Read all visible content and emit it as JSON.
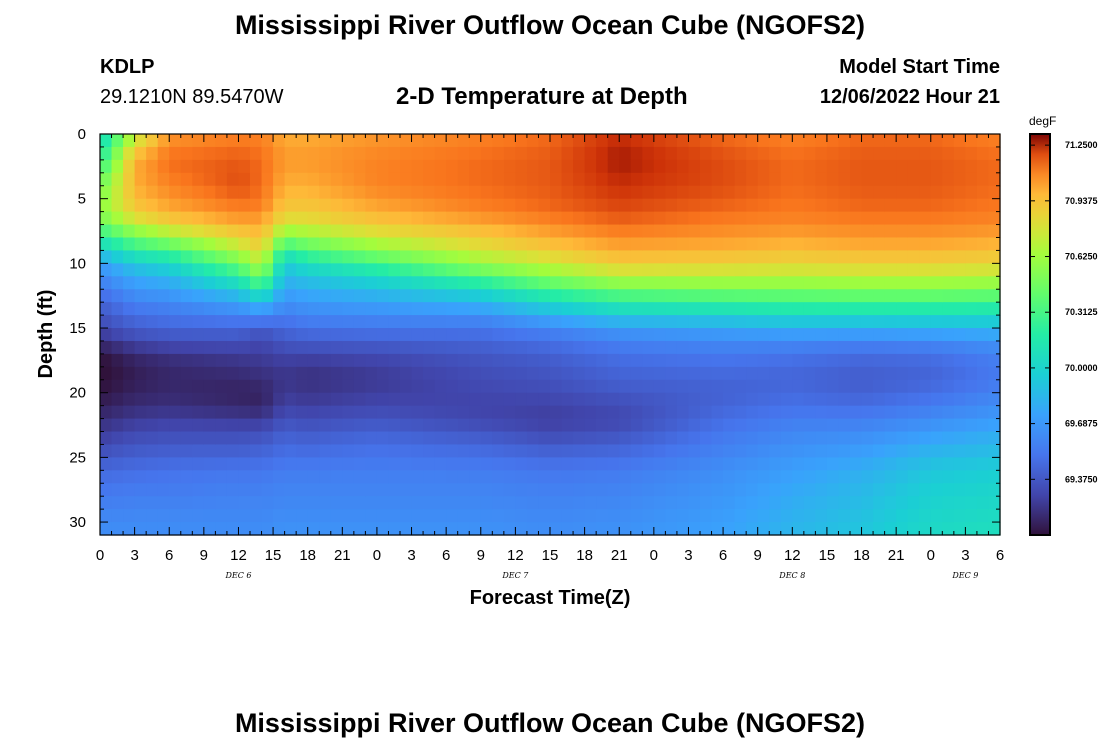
{
  "header": {
    "title": "Mississippi River Outflow Ocean Cube (NGOFS2)",
    "station_id": "KDLP",
    "station_coords": "29.1210N  89.5470W",
    "subtitle": "2-D Temperature at Depth",
    "model_start_label": "Model Start Time",
    "model_start_value": "12/06/2022 Hour 21"
  },
  "footer": {
    "title": "Mississippi River Outflow Ocean Cube (NGOFS2)"
  },
  "chart_data": {
    "type": "heatmap",
    "variable": "Temperature",
    "units": "degF",
    "xlabel": "Forecast Time(Z)",
    "ylabel": "Depth (ft)",
    "x_start": "DEC 6 00Z",
    "x_range_hours": [
      0,
      78
    ],
    "ylim": [
      0,
      31
    ],
    "y_inverted": true,
    "yticks": [
      0,
      5,
      10,
      15,
      20,
      25,
      30
    ],
    "xtick_labels": [
      "0",
      "3",
      "6",
      "9",
      "12",
      "15",
      "18",
      "21",
      "0",
      "3",
      "6",
      "9",
      "12",
      "15",
      "18",
      "21",
      "0",
      "3",
      "6",
      "9",
      "12",
      "15",
      "18",
      "21",
      "0",
      "3",
      "6"
    ],
    "day_labels": [
      {
        "label": "DEC 6",
        "hour": 12
      },
      {
        "label": "DEC 7",
        "hour": 36
      },
      {
        "label": "DEC 8",
        "hour": 60
      },
      {
        "label": "DEC 9",
        "hour": 75
      }
    ],
    "colorbar": {
      "min": 69.0625,
      "max": 71.3125,
      "tick_values": [
        71.25,
        70.9375,
        70.625,
        70.3125,
        70.0,
        69.6875,
        69.375
      ],
      "tick_labels": [
        "71.2500",
        "70.9375",
        "70.6250",
        "70.3125",
        "70.0000",
        "69.6875",
        "69.3750"
      ]
    },
    "temperature_profiles": {
      "depths_ft": [
        0,
        2,
        4,
        6,
        7,
        8,
        9,
        10,
        11,
        12,
        13,
        14,
        15,
        16,
        17,
        18,
        19,
        20,
        21,
        22,
        23,
        24,
        25,
        26,
        28,
        30,
        31
      ],
      "times_hours": [
        0,
        3,
        6,
        12,
        14,
        16,
        18,
        24,
        33,
        39,
        45,
        54,
        60,
        66,
        72,
        78
      ],
      "values_degF": [
        [
          70.0,
          70.2,
          70.48,
          70.58,
          70.4,
          70.2,
          69.95,
          69.72,
          69.62,
          69.52,
          69.44,
          69.36,
          69.3,
          69.2,
          69.08,
          69.04,
          69.05,
          69.08,
          69.12,
          69.18,
          69.24,
          69.3,
          69.38,
          69.46,
          69.54,
          69.62,
          69.64
        ],
        [
          70.7,
          71.0,
          71.0,
          70.9,
          70.7,
          70.45,
          70.2,
          69.95,
          69.78,
          69.68,
          69.58,
          69.48,
          69.4,
          69.3,
          69.18,
          69.12,
          69.12,
          69.14,
          69.18,
          69.24,
          69.3,
          69.36,
          69.42,
          69.48,
          69.56,
          69.62,
          69.64
        ],
        [
          71.05,
          71.15,
          71.1,
          71.0,
          70.85,
          70.6,
          70.3,
          70.05,
          69.85,
          69.72,
          69.62,
          69.52,
          69.44,
          69.34,
          69.22,
          69.16,
          69.16,
          69.16,
          69.2,
          69.26,
          69.32,
          69.38,
          69.44,
          69.5,
          69.56,
          69.62,
          69.64
        ],
        [
          71.1,
          71.18,
          71.2,
          71.1,
          71.0,
          70.85,
          70.68,
          70.45,
          70.2,
          69.95,
          69.75,
          69.58,
          69.45,
          69.35,
          69.25,
          69.2,
          69.16,
          69.14,
          69.16,
          69.24,
          69.32,
          69.38,
          69.45,
          69.52,
          69.58,
          69.62,
          69.64
        ],
        [
          71.1,
          71.15,
          71.15,
          71.1,
          71.0,
          70.95,
          70.85,
          70.7,
          70.5,
          70.2,
          69.9,
          69.62,
          69.4,
          69.3,
          69.26,
          69.22,
          69.18,
          69.14,
          69.14,
          69.24,
          69.32,
          69.4,
          69.46,
          69.52,
          69.58,
          69.62,
          69.64
        ],
        [
          71.0,
          71.05,
          71.0,
          70.9,
          70.75,
          70.5,
          70.2,
          69.95,
          69.85,
          69.75,
          69.65,
          69.55,
          69.45,
          69.38,
          69.3,
          69.24,
          69.22,
          69.24,
          69.28,
          69.34,
          69.4,
          69.46,
          69.5,
          69.55,
          69.6,
          69.64,
          69.66
        ],
        [
          71.0,
          71.05,
          71.0,
          70.9,
          70.78,
          70.58,
          70.35,
          70.1,
          69.92,
          69.8,
          69.7,
          69.6,
          69.5,
          69.4,
          69.3,
          69.22,
          69.2,
          69.22,
          69.26,
          69.32,
          69.38,
          69.44,
          69.5,
          69.55,
          69.6,
          69.64,
          69.66
        ],
        [
          71.05,
          71.1,
          71.1,
          71.0,
          70.9,
          70.75,
          70.55,
          70.3,
          70.05,
          69.88,
          69.75,
          69.62,
          69.52,
          69.42,
          69.32,
          69.26,
          69.24,
          69.26,
          69.3,
          69.36,
          69.42,
          69.48,
          69.52,
          69.56,
          69.6,
          69.64,
          69.66
        ],
        [
          71.1,
          71.15,
          71.15,
          71.1,
          71.0,
          70.9,
          70.78,
          70.6,
          70.35,
          70.05,
          69.85,
          69.65,
          69.52,
          69.44,
          69.38,
          69.34,
          69.32,
          69.3,
          69.28,
          69.3,
          69.36,
          69.44,
          69.5,
          69.55,
          69.6,
          69.64,
          69.66
        ],
        [
          71.15,
          71.18,
          71.18,
          71.15,
          71.08,
          71.0,
          70.9,
          70.75,
          70.55,
          70.3,
          70.05,
          69.8,
          69.6,
          69.5,
          69.42,
          69.38,
          69.35,
          69.32,
          69.28,
          69.26,
          69.3,
          69.38,
          69.46,
          69.52,
          69.58,
          69.62,
          69.64
        ],
        [
          71.25,
          71.28,
          71.25,
          71.2,
          71.15,
          71.08,
          71.0,
          70.9,
          70.7,
          70.45,
          70.2,
          69.95,
          69.7,
          69.58,
          69.5,
          69.45,
          69.42,
          69.38,
          69.32,
          69.3,
          69.34,
          69.42,
          69.48,
          69.54,
          69.6,
          69.64,
          69.66
        ],
        [
          71.15,
          71.2,
          71.2,
          71.15,
          71.1,
          71.05,
          70.98,
          70.88,
          70.7,
          70.5,
          70.25,
          70.0,
          69.75,
          69.62,
          69.54,
          69.48,
          69.44,
          69.42,
          69.44,
          69.48,
          69.52,
          69.56,
          69.6,
          69.64,
          69.68,
          69.72,
          69.74
        ],
        [
          71.1,
          71.15,
          71.15,
          71.12,
          71.08,
          71.02,
          70.95,
          70.85,
          70.7,
          70.5,
          70.28,
          70.05,
          69.8,
          69.62,
          69.52,
          69.46,
          69.44,
          69.46,
          69.5,
          69.55,
          69.6,
          69.64,
          69.68,
          69.72,
          69.78,
          69.82,
          69.84
        ],
        [
          71.15,
          71.18,
          71.18,
          71.15,
          71.1,
          71.05,
          70.98,
          70.88,
          70.72,
          70.52,
          70.3,
          70.05,
          69.8,
          69.6,
          69.48,
          69.42,
          69.4,
          69.42,
          69.48,
          69.55,
          69.62,
          69.68,
          69.74,
          69.8,
          69.86,
          69.9,
          69.92
        ],
        [
          71.15,
          71.18,
          71.18,
          71.15,
          71.1,
          71.05,
          70.98,
          70.88,
          70.72,
          70.52,
          70.3,
          70.05,
          69.82,
          69.62,
          69.5,
          69.44,
          69.44,
          69.48,
          69.55,
          69.62,
          69.7,
          69.78,
          69.86,
          69.92,
          69.98,
          70.02,
          70.04
        ],
        [
          71.1,
          71.15,
          71.15,
          71.12,
          71.08,
          71.02,
          70.95,
          70.85,
          70.7,
          70.5,
          70.28,
          70.05,
          69.85,
          69.68,
          69.58,
          69.54,
          69.54,
          69.58,
          69.64,
          69.7,
          69.78,
          69.84,
          69.9,
          69.96,
          70.02,
          70.06,
          70.08
        ]
      ]
    }
  }
}
